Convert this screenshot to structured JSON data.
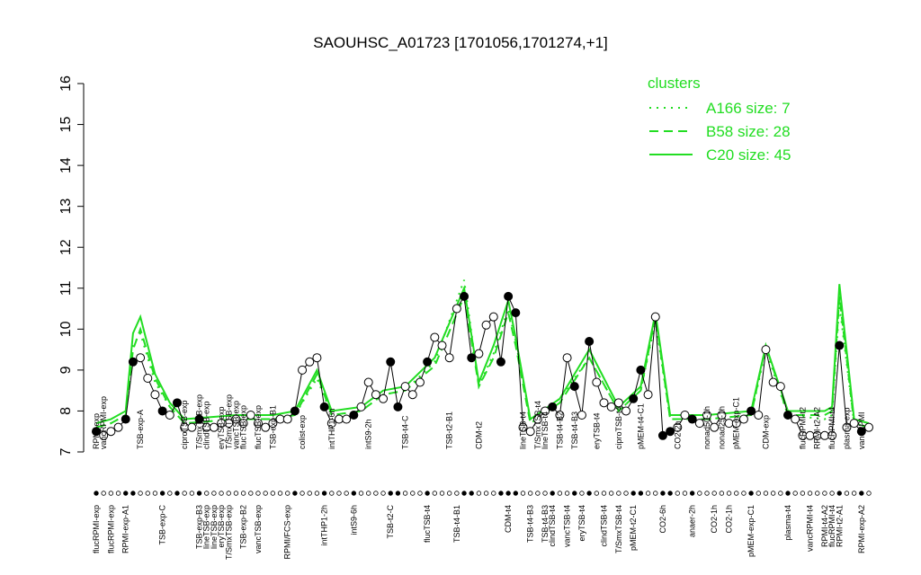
{
  "chart_data": {
    "type": "scatter",
    "title": "SAOUHSC_A01723 [1701056,1701274,+1]",
    "ylim": [
      7,
      16
    ],
    "yticks": [
      7,
      8,
      9,
      10,
      11,
      12,
      13,
      14,
      15,
      16
    ],
    "point_color": "#000000",
    "values": [
      7.5,
      7.4,
      7.5,
      7.6,
      7.8,
      9.2,
      9.3,
      8.8,
      8.4,
      8.0,
      7.9,
      8.2,
      7.6,
      7.6,
      7.8,
      7.6,
      7.6,
      7.7,
      7.7,
      7.8,
      7.7,
      7.9,
      7.7,
      7.6,
      7.7,
      7.8,
      7.8,
      8.0,
      9.0,
      9.2,
      9.3,
      8.1,
      7.7,
      7.8,
      7.8,
      7.9,
      8.1,
      8.7,
      8.4,
      8.3,
      9.2,
      8.1,
      8.6,
      8.4,
      8.7,
      9.2,
      9.8,
      9.6,
      9.3,
      10.5,
      10.8,
      9.3,
      9.4,
      10.1,
      10.3,
      9.2,
      10.8,
      10.4,
      7.6,
      7.5,
      7.8,
      8.0,
      8.1,
      7.9,
      9.3,
      8.6,
      7.9,
      9.7,
      8.7,
      8.2,
      8.1,
      8.2,
      8.0,
      8.3,
      9.0,
      8.4,
      10.3,
      7.4,
      7.5,
      7.6,
      7.9,
      7.8,
      7.7,
      7.9,
      7.6,
      7.9,
      7.7,
      7.7,
      7.8,
      8.0,
      7.9,
      9.5,
      8.7,
      8.6,
      7.9,
      7.8,
      7.4,
      7.4,
      7.4,
      7.4,
      7.4,
      9.6,
      7.6,
      7.7,
      7.5,
      7.6
    ],
    "filled": [
      true,
      false,
      false,
      false,
      true,
      true,
      false,
      false,
      false,
      true,
      false,
      true,
      false,
      false,
      true,
      false,
      false,
      false,
      false,
      false,
      false,
      false,
      false,
      false,
      false,
      false,
      false,
      true,
      false,
      false,
      false,
      true,
      false,
      false,
      false,
      true,
      false,
      false,
      false,
      false,
      true,
      true,
      false,
      false,
      false,
      true,
      false,
      false,
      false,
      false,
      true,
      true,
      false,
      false,
      false,
      true,
      true,
      true,
      false,
      false,
      false,
      false,
      true,
      false,
      false,
      true,
      false,
      true,
      false,
      false,
      false,
      false,
      false,
      true,
      true,
      false,
      false,
      true,
      true,
      false,
      false,
      true,
      false,
      false,
      false,
      false,
      false,
      false,
      false,
      true,
      false,
      false,
      false,
      false,
      true,
      false,
      false,
      false,
      false,
      false,
      false,
      true,
      false,
      false,
      true,
      false
    ],
    "top_labels": [
      "RPMI-exp",
      "vancRPMI-exp",
      null,
      null,
      null,
      null,
      "TSB-exp-A",
      null,
      null,
      null,
      null,
      null,
      "ciproTSB-exp",
      null,
      "T/SmxTSB-exp",
      "clindTSB-exp",
      null,
      "eryTSB-exp",
      "T/SmxTSB-exp",
      "vancTSB-exp",
      "flucTSB-exp",
      null,
      "flucTSB-exp",
      null,
      "TSB-exp-B1",
      null,
      null,
      null,
      "colist-exp",
      null,
      null,
      null,
      "intTHP1-6h",
      null,
      null,
      null,
      null,
      "intS9-2h",
      null,
      null,
      null,
      null,
      "TSB-t4-C",
      null,
      null,
      null,
      null,
      null,
      "TSB-t2-B1",
      null,
      null,
      null,
      "CDM-t2",
      null,
      null,
      null,
      null,
      null,
      "lineTSB-t4",
      null,
      "T/SmxTSB-t4",
      "lineTSB-t4",
      null,
      "TSB-t4-B2",
      null,
      "TSB-t4-B3",
      null,
      null,
      "eryTSB-t4",
      null,
      null,
      "ciproTSB-t4",
      null,
      null,
      "pMEM-t4-C1",
      null,
      null,
      null,
      null,
      "CO2-2h",
      null,
      null,
      null,
      "nonad50-1h",
      null,
      "nonad25-1h",
      null,
      "pMEM-exp-C1",
      null,
      null,
      null,
      "CDM-exp",
      null,
      null,
      null,
      null,
      "flucRPMI-t2",
      null,
      "RPMI-t2-A2",
      null,
      "flucRPMI-t4",
      null,
      "plasma-exp",
      null,
      "vancRPMI",
      null
    ],
    "bottom_labels": [
      "flucRPMI-exp",
      null,
      "flucRPMI-exp",
      null,
      "RPMI-exp-A1",
      null,
      null,
      null,
      null,
      "TSB-exp-C",
      null,
      null,
      null,
      null,
      "TSB-exp-B3",
      "lineTSB-exp",
      "lineTSB-exp",
      "eryTSB-exp",
      "T/SmxTSB-exp",
      null,
      "TSB-exp-B2",
      null,
      "vancTSB-exp",
      null,
      null,
      null,
      "RPMI/FCS-exp",
      null,
      null,
      null,
      null,
      "intTHP1-2h",
      null,
      null,
      null,
      "intS9-6h",
      null,
      null,
      null,
      null,
      "TSB-t2-C",
      null,
      null,
      null,
      null,
      "flucTSB-t4",
      null,
      null,
      null,
      "TSB-t4-B1",
      null,
      null,
      null,
      null,
      null,
      null,
      "CDM-t4",
      null,
      null,
      "TSB-t4-B3",
      null,
      "TSB-t4-B3",
      "clindTSB-t4",
      null,
      "vancTSB-t4",
      null,
      "eryTSB-t4",
      null,
      null,
      "clindTSB-t4",
      null,
      "T/SmxTSB-t4",
      null,
      "pMEM-t2-C1",
      null,
      null,
      null,
      "CO2-6h",
      null,
      null,
      null,
      "anaer-2h",
      null,
      null,
      "CO2-1h",
      null,
      "CO2-1h",
      null,
      null,
      "pMEM-exp-C1",
      null,
      null,
      null,
      null,
      "plasma-t4",
      null,
      null,
      "vancRPMI-t4",
      null,
      "RPMI-t4-A2",
      "flucRPMI-t4",
      "RPMI-t2-A1",
      null,
      null,
      "RPMI-exp-A2",
      null
    ],
    "legend_title": "clusters",
    "series": [
      {
        "name": "A166 size: 7",
        "color": "#22dd22",
        "dash": "2,6",
        "x": [
          1,
          3,
          5,
          6,
          7,
          9,
          11,
          13,
          20,
          25,
          28,
          31,
          33,
          37,
          40,
          43,
          47,
          51,
          53,
          55,
          57,
          58,
          60,
          64,
          68,
          72,
          75,
          77,
          79,
          84,
          90,
          92,
          95,
          100,
          101,
          102,
          104,
          106
        ],
        "values": [
          7.6,
          7.7,
          7.9,
          9.6,
          9.9,
          8.7,
          8.1,
          7.7,
          7.8,
          7.8,
          7.9,
          8.8,
          7.9,
          8.0,
          8.4,
          8.5,
          9.2,
          11.2,
          8.6,
          9.4,
          10.5,
          9.7,
          7.8,
          8.3,
          9.3,
          8.0,
          8.5,
          10.2,
          7.8,
          7.8,
          7.9,
          9.5,
          7.9,
          7.8,
          7.9,
          10.6,
          7.7,
          7.6
        ]
      },
      {
        "name": "B58 size: 28",
        "color": "#22dd22",
        "dash": "10,6",
        "x": [
          1,
          3,
          5,
          6,
          7,
          9,
          11,
          13,
          20,
          25,
          28,
          31,
          33,
          37,
          40,
          43,
          47,
          51,
          53,
          55,
          57,
          58,
          60,
          64,
          68,
          72,
          75,
          77,
          79,
          84,
          90,
          92,
          95,
          100,
          101,
          102,
          104,
          106
        ],
        "values": [
          7.6,
          7.7,
          7.9,
          9.5,
          10.0,
          8.8,
          8.1,
          7.7,
          7.8,
          7.8,
          7.9,
          8.9,
          7.9,
          8.0,
          8.4,
          8.5,
          9.1,
          10.8,
          8.6,
          9.3,
          10.4,
          9.6,
          7.7,
          8.2,
          9.3,
          8.0,
          8.5,
          10.3,
          7.8,
          7.8,
          7.9,
          9.6,
          7.9,
          7.9,
          8.0,
          10.8,
          7.7,
          7.6
        ]
      },
      {
        "name": "C20 size: 45",
        "color": "#22dd22",
        "dash": "",
        "x": [
          1,
          3,
          5,
          6,
          7,
          9,
          11,
          13,
          20,
          25,
          28,
          31,
          33,
          37,
          40,
          43,
          47,
          51,
          53,
          55,
          57,
          58,
          60,
          64,
          68,
          72,
          75,
          77,
          79,
          84,
          90,
          92,
          95,
          100,
          101,
          102,
          104,
          106
        ],
        "values": [
          7.7,
          7.8,
          8.0,
          9.9,
          10.3,
          8.9,
          8.2,
          7.8,
          7.9,
          7.9,
          8.0,
          9.0,
          8.0,
          8.1,
          8.5,
          8.6,
          9.3,
          11.0,
          8.7,
          9.6,
          10.7,
          9.8,
          7.8,
          8.3,
          9.5,
          8.1,
          8.6,
          10.4,
          7.9,
          7.9,
          8.0,
          9.6,
          8.0,
          8.0,
          8.1,
          11.1,
          7.8,
          7.7
        ]
      }
    ]
  }
}
